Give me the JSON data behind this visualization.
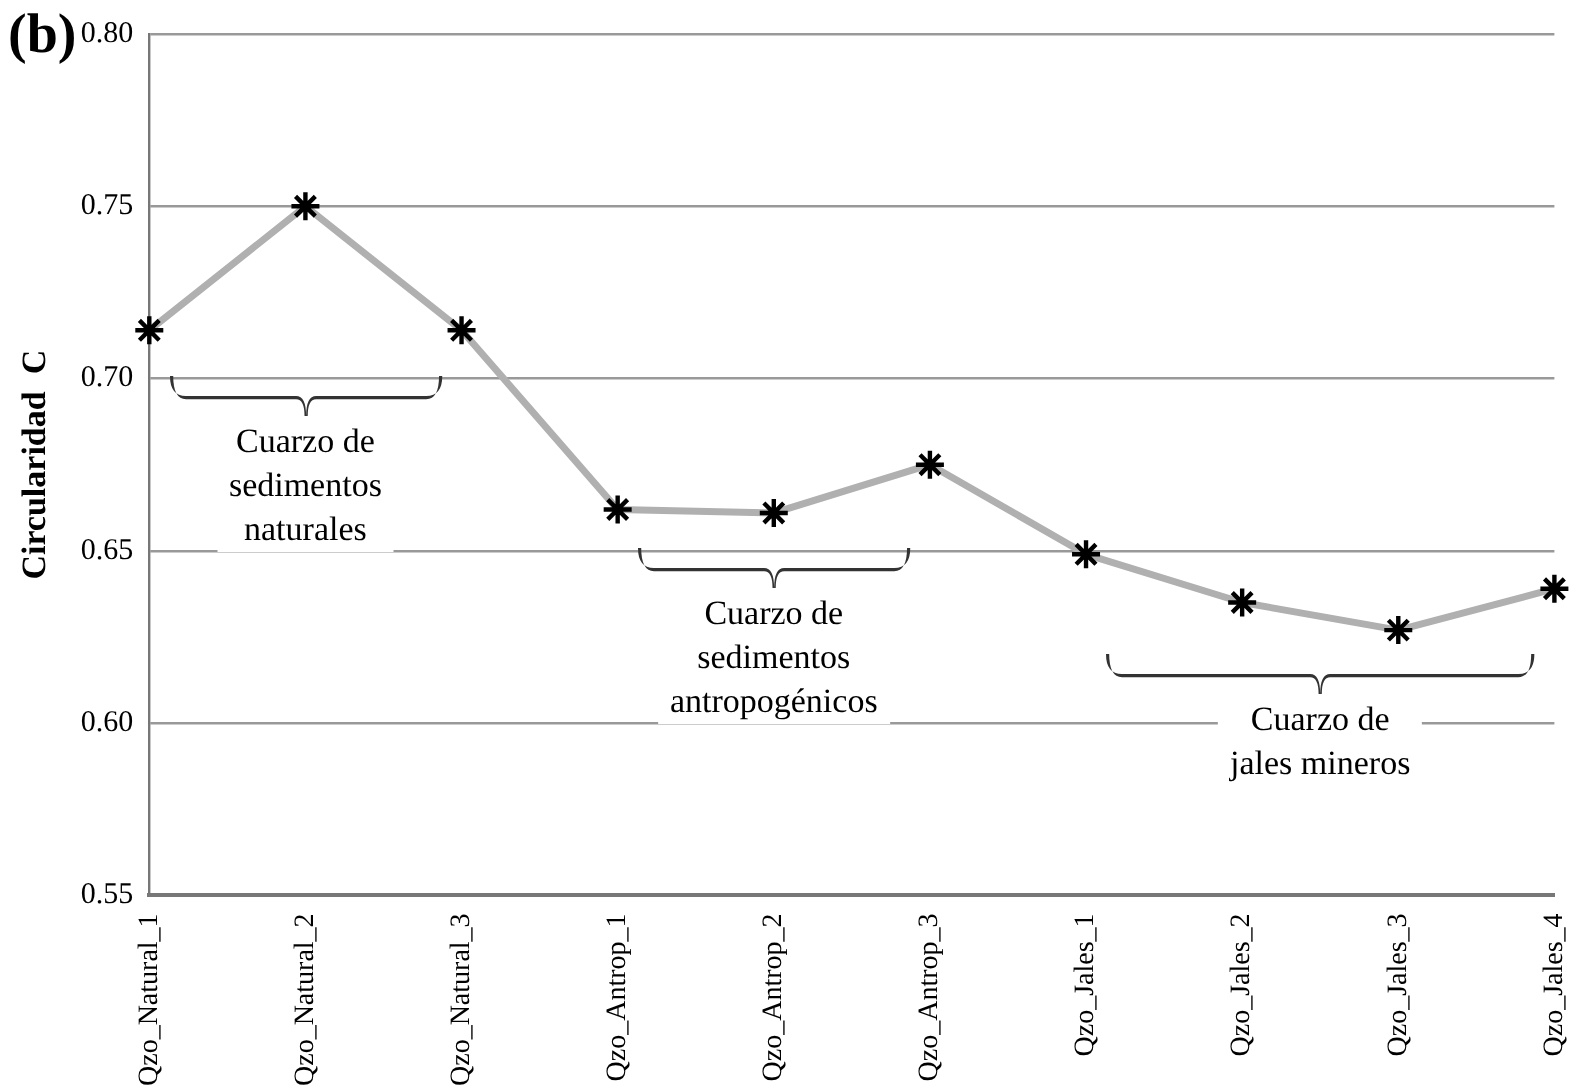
{
  "chart_data": {
    "type": "line",
    "title": "(b)",
    "ylabel": "Circularidad  C",
    "categories": [
      "Qzo_Natural_1",
      "Qzo_Natural_2",
      "Qzo_Natural_3",
      "Qzo_Antrop_1",
      "Qzo_Antrop_2",
      "Qzo_Antrop_3",
      "Qzo_Jales_1",
      "Qzo_Jales_2",
      "Qzo_Jales_3",
      "Qzo_Jales_4"
    ],
    "series": [
      {
        "color": "#b0b0b0",
        "values": [
          0.714,
          0.75,
          0.714,
          0.662,
          0.661,
          0.675,
          0.649,
          0.635,
          0.627,
          0.639
        ]
      }
    ],
    "ylim": [
      0.55,
      0.8
    ],
    "yticks": [
      {
        "value": 0.55,
        "label": "0.55"
      },
      {
        "value": 0.6,
        "label": "0.60"
      },
      {
        "value": 0.65,
        "label": "0.65"
      },
      {
        "value": 0.7,
        "label": "0.70"
      },
      {
        "value": 0.75,
        "label": "0.75"
      },
      {
        "value": 0.8,
        "label": "0.80"
      }
    ],
    "annotations": [
      "Cuarzo de\nsedimentos\nnaturales",
      "Cuarzo de\nsedimentos\nantropogénicos",
      "Cuarzo de\njales mineros"
    ],
    "grid": "y",
    "marker": "cross",
    "line_style": "solid",
    "legend": false
  }
}
